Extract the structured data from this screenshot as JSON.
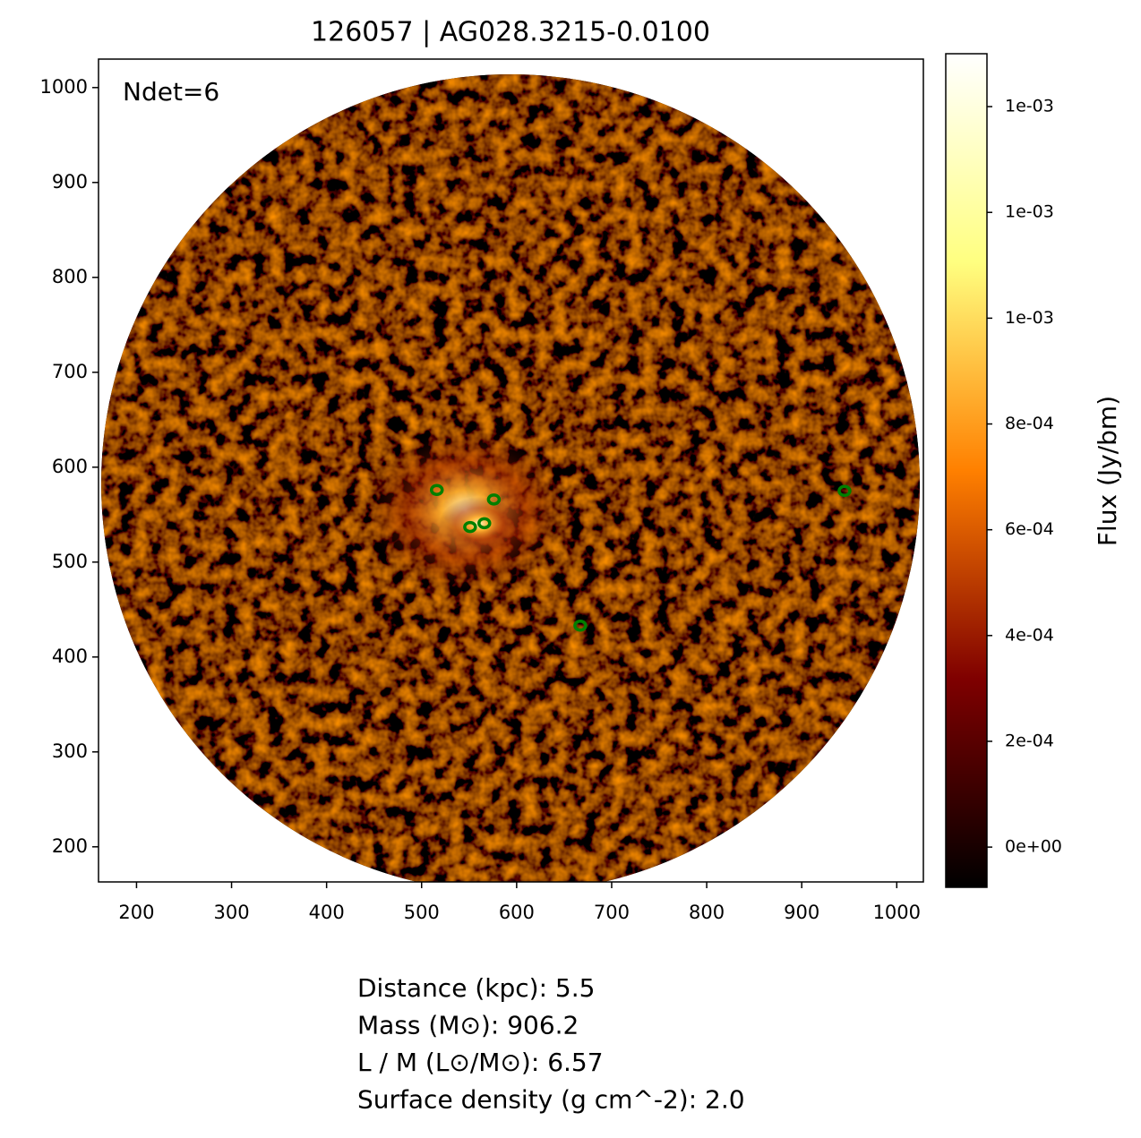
{
  "chart_data": {
    "type": "image",
    "title": "126057 | AG028.3215-0.0100",
    "annotation": "Ndet=6",
    "xlim": [
      160,
      1028
    ],
    "ylim": [
      163,
      1030
    ],
    "xticks": [
      200,
      300,
      400,
      500,
      600,
      700,
      800,
      900,
      1000
    ],
    "yticks": [
      200,
      300,
      400,
      500,
      600,
      700,
      800,
      900,
      1000
    ],
    "colormap": "afmhot",
    "colorbar": {
      "label": "Flux (Jy/bm)",
      "clim": [
        -7.6e-05,
        0.0015
      ],
      "ticks": [
        {
          "value": 0,
          "label": "0e+00"
        },
        {
          "value": 0.0002,
          "label": "2e-04"
        },
        {
          "value": 0.0004,
          "label": "4e-04"
        },
        {
          "value": 0.0006,
          "label": "6e-04"
        },
        {
          "value": 0.0008,
          "label": "8e-04"
        },
        {
          "value": 0.001,
          "label": "1e-03"
        },
        {
          "value": 0.0012,
          "label": "1e-03"
        },
        {
          "value": 0.0014,
          "label": "1e-03"
        }
      ]
    },
    "detections": {
      "color": "#007f00",
      "x": [
        516,
        576,
        551,
        566,
        945,
        667
      ],
      "y": [
        576,
        566,
        537,
        541,
        575,
        433
      ]
    },
    "info": [
      "Distance (kpc): 5.5",
      "Mass (M⊙): 906.2",
      "L / M (L⊙/M⊙): 6.57",
      "Surface density (g cm^-2): 2.0"
    ]
  }
}
